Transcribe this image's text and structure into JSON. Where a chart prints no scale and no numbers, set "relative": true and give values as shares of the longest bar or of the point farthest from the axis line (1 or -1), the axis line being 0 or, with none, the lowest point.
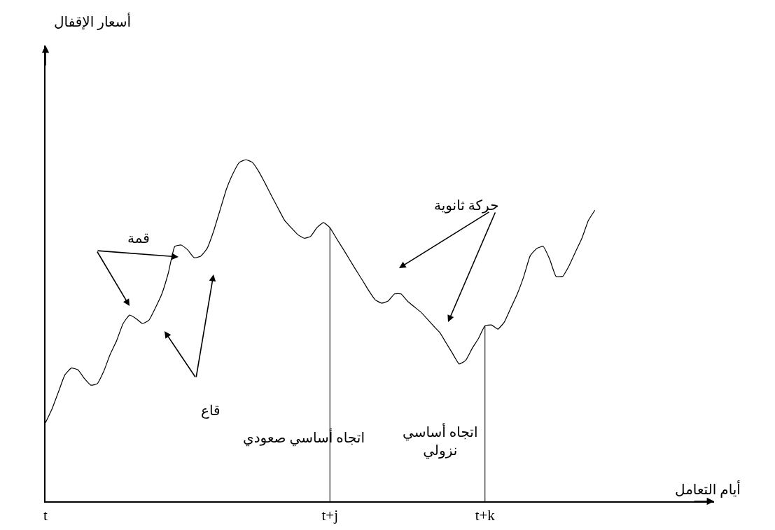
{
  "chart_data": {
    "type": "line",
    "relative": true,
    "categories": [
      "t",
      null,
      null,
      null,
      null,
      null,
      null,
      null,
      null,
      null,
      null,
      null,
      null,
      null,
      null,
      null,
      null,
      null,
      null,
      null,
      null,
      null,
      null,
      null,
      null,
      null,
      null,
      null,
      null,
      null,
      null,
      null,
      null,
      null,
      null,
      null,
      null,
      null,
      null,
      null,
      null,
      null,
      null,
      null,
      "t+j",
      null,
      null,
      null,
      null,
      null,
      null,
      null,
      null,
      null,
      null,
      null,
      null,
      null,
      null,
      null,
      null,
      null,
      null,
      null,
      null,
      null,
      null,
      null,
      "t+k",
      null,
      null,
      null,
      null,
      null,
      null,
      null,
      null,
      null,
      null,
      null,
      null,
      null,
      null,
      null,
      null,
      null
    ],
    "series": [
      {
        "color": "#000000",
        "values": [
          0.23,
          0.27,
          0.32,
          0.37,
          0.39,
          0.385,
          0.36,
          0.34,
          0.344,
          0.38,
          0.43,
          0.47,
          0.52,
          0.545,
          0.535,
          0.52,
          0.53,
          0.566,
          0.607,
          0.668,
          0.746,
          0.75,
          0.736,
          0.713,
          0.717,
          0.74,
          0.79,
          0.852,
          0.914,
          0.959,
          0.992,
          1,
          0.992,
          0.965,
          0.93,
          0.893,
          0.857,
          0.822,
          0.801,
          0.781,
          0.77,
          0.775,
          0.801,
          0.816,
          0.801,
          0.77,
          0.74,
          0.709,
          0.678,
          0.648,
          0.617,
          0.59,
          0.58,
          0.586,
          0.607,
          0.607,
          0.586,
          0.57,
          0.555,
          0.535,
          0.514,
          0.494,
          0.463,
          0.432,
          0.402,
          0.412,
          0.447,
          0.477,
          0.514,
          0.516,
          0.504,
          0.525,
          0.566,
          0.607,
          0.658,
          0.719,
          0.74,
          0.746,
          0.709,
          0.658,
          0.658,
          0.689,
          0.73,
          0.77,
          0.822,
          0.852
        ]
      }
    ],
    "tick_labels": "x",
    "ref_lines": [
      {
        "axis": "x",
        "value": "t+j",
        "color": "#000000"
      },
      {
        "axis": "x",
        "value": "t+k",
        "color": "#000000"
      }
    ],
    "annotations": [
      "قمة",
      "قاع",
      "حركة ثانوية",
      "اتجاه أساسي صعودي",
      "اتجاه أساسي نزولي",
      "أسعار الإقفال",
      "أيام التعامل"
    ],
    "grid": false,
    "marker": "none",
    "line_style": "solid"
  }
}
